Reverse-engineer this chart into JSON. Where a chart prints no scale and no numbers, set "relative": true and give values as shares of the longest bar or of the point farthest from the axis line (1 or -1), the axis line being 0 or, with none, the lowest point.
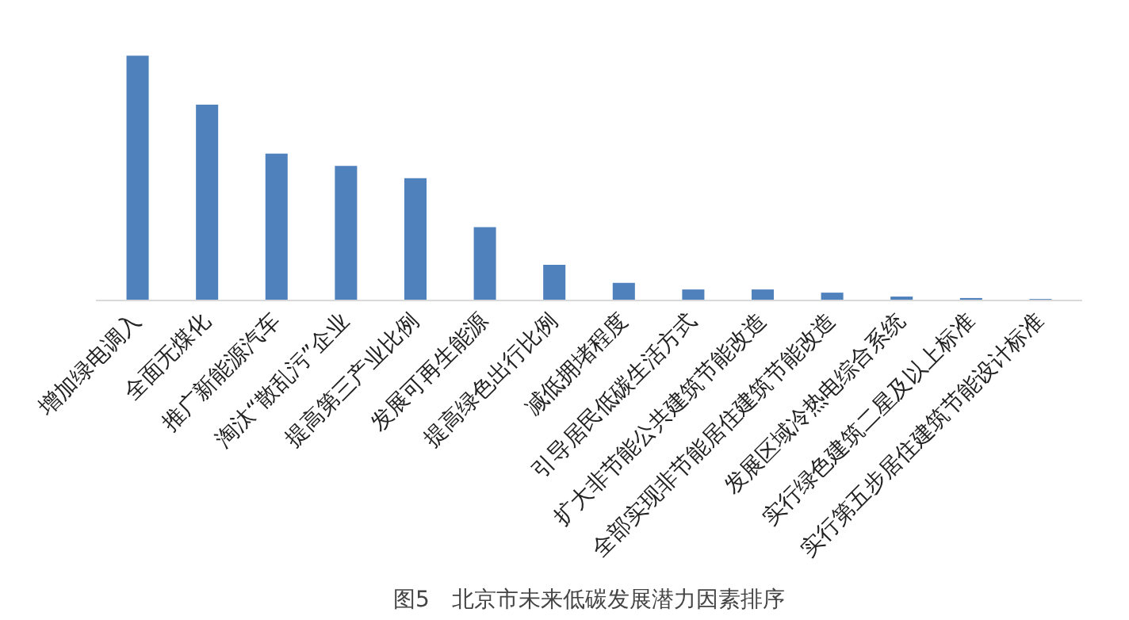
{
  "chart_data": {
    "type": "bar",
    "title": "图5　北京市未来低碳发展潜力因素排序",
    "relative": true,
    "color": "#4f81bd",
    "categories": [
      "增加绿电调入",
      "全面无煤化",
      "推广新能源汽车",
      "淘汰“散乱污”企业",
      "提高第三产业比例",
      "发展可再生能源",
      "提高绿色出行比例",
      "减低拥堵程度",
      "引导居民低碳生活方式",
      "扩大非节能公共建筑节能改造",
      "全部实现非节能居住建筑节能改造",
      "发展区域冷热电综合系统",
      "实行绿色建筑二星及以上标准",
      "实行第五步居住建筑节能设计标准"
    ],
    "values": [
      1,
      0.8,
      0.6,
      0.55,
      0.5,
      0.3,
      0.146,
      0.072,
      0.045,
      0.045,
      0.032,
      0.016,
      0.01,
      0.006
    ]
  }
}
